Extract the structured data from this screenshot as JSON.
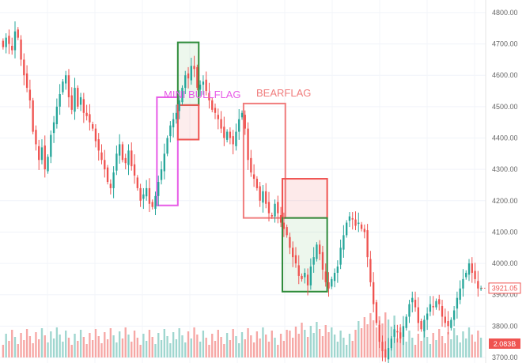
{
  "chart_data": {
    "type": "candlestick",
    "ylim": [
      3700,
      4820
    ],
    "y_ticks": [
      "4800.00",
      "4700.00",
      "4600.00",
      "4500.00",
      "4400.00",
      "4300.00",
      "4200.00",
      "4100.00",
      "4000.00",
      "3900.00",
      "3800.00",
      "3700.00"
    ],
    "grid": true,
    "colors": {
      "up": "#26a69a",
      "down": "#ef5350",
      "up_volume": "#9fd6cf",
      "down_volume": "#f6a7a5",
      "pink": "#e75be7",
      "salmon": "#f07c7c",
      "green": "#2e8b3a"
    },
    "price_badge": {
      "value": "3921.05",
      "price": 3921.05
    },
    "volume_badge": {
      "value": "2.083B"
    },
    "annotations": [
      {
        "name": "mini-bull-flag",
        "text": "MINI BULLFLAG",
        "color": "#e75be7"
      },
      {
        "name": "bear-flag",
        "text": "BEARFLAG",
        "color": "#f07c7c"
      }
    ],
    "boxes": [
      {
        "name": "mini-bull-flag-box",
        "i0": 52,
        "i1": 58,
        "top": 4530,
        "bottom": 4185,
        "stroke": "#e75be7",
        "fill": "none"
      },
      {
        "name": "bull-target-green-box",
        "i0": 59,
        "i1": 65,
        "top": 4705,
        "bottom": 4505,
        "stroke": "#2e8b3a",
        "fill": "rgba(76,175,80,0.10)"
      },
      {
        "name": "bull-stop-red-box",
        "i0": 59,
        "i1": 65,
        "top": 4505,
        "bottom": 4395,
        "stroke": "#ef5350",
        "fill": "rgba(239,83,80,0.10)"
      },
      {
        "name": "bear-flag-box",
        "i0": 81,
        "i1": 94,
        "top": 4510,
        "bottom": 4145,
        "stroke": "#f07c7c",
        "fill": "none"
      },
      {
        "name": "bear-stop-red-box",
        "i0": 94,
        "i1": 108,
        "top": 4270,
        "bottom": 4145,
        "stroke": "#ef5350",
        "fill": "rgba(239,83,80,0.12)"
      },
      {
        "name": "bear-target-green-box",
        "i0": 94,
        "i1": 108,
        "top": 4145,
        "bottom": 3910,
        "stroke": "#2e8b3a",
        "fill": "rgba(76,175,80,0.10)"
      }
    ],
    "closes": [
      4690,
      4720,
      4700,
      4680,
      4740,
      4720,
      4650,
      4600,
      4560,
      4520,
      4420,
      4380,
      4330,
      4370,
      4300,
      4340,
      4410,
      4450,
      4500,
      4540,
      4580,
      4600,
      4530,
      4490,
      4560,
      4500,
      4530,
      4480,
      4470,
      4450,
      4430,
      4390,
      4360,
      4330,
      4300,
      4260,
      4240,
      4290,
      4350,
      4380,
      4330,
      4320,
      4360,
      4310,
      4280,
      4240,
      4200,
      4220,
      4240,
      4190,
      4180,
      4215,
      4260,
      4300,
      4350,
      4400,
      4440,
      4460,
      4480,
      4520,
      4560,
      4600,
      4590,
      4630,
      4620,
      4560,
      4570,
      4580,
      4550,
      4520,
      4490,
      4480,
      4460,
      4430,
      4400,
      4420,
      4400,
      4380,
      4420,
      4460,
      4480,
      4430,
      4330,
      4290,
      4270,
      4240,
      4200,
      4230,
      4190,
      4160,
      4150,
      4190,
      4160,
      4130,
      4110,
      4090,
      4050,
      4020,
      4000,
      3960,
      3950,
      3970,
      3930,
      3990,
      4020,
      4060,
      4030,
      3980,
      3940,
      3920,
      3950,
      3970,
      3990,
      4050,
      4090,
      4130,
      4150,
      4140,
      4120,
      4130,
      4110,
      4100,
      4020,
      3940,
      3870,
      3810,
      3750,
      3720,
      3700,
      3730,
      3760,
      3790,
      3780,
      3760,
      3800,
      3830,
      3870,
      3890,
      3860,
      3810,
      3790,
      3820,
      3840,
      3870,
      3860,
      3880,
      3870,
      3830,
      3810,
      3800,
      3820,
      3850,
      3890,
      3920,
      3950,
      3970,
      4000,
      3970,
      3950,
      3920,
      3921
    ]
  }
}
